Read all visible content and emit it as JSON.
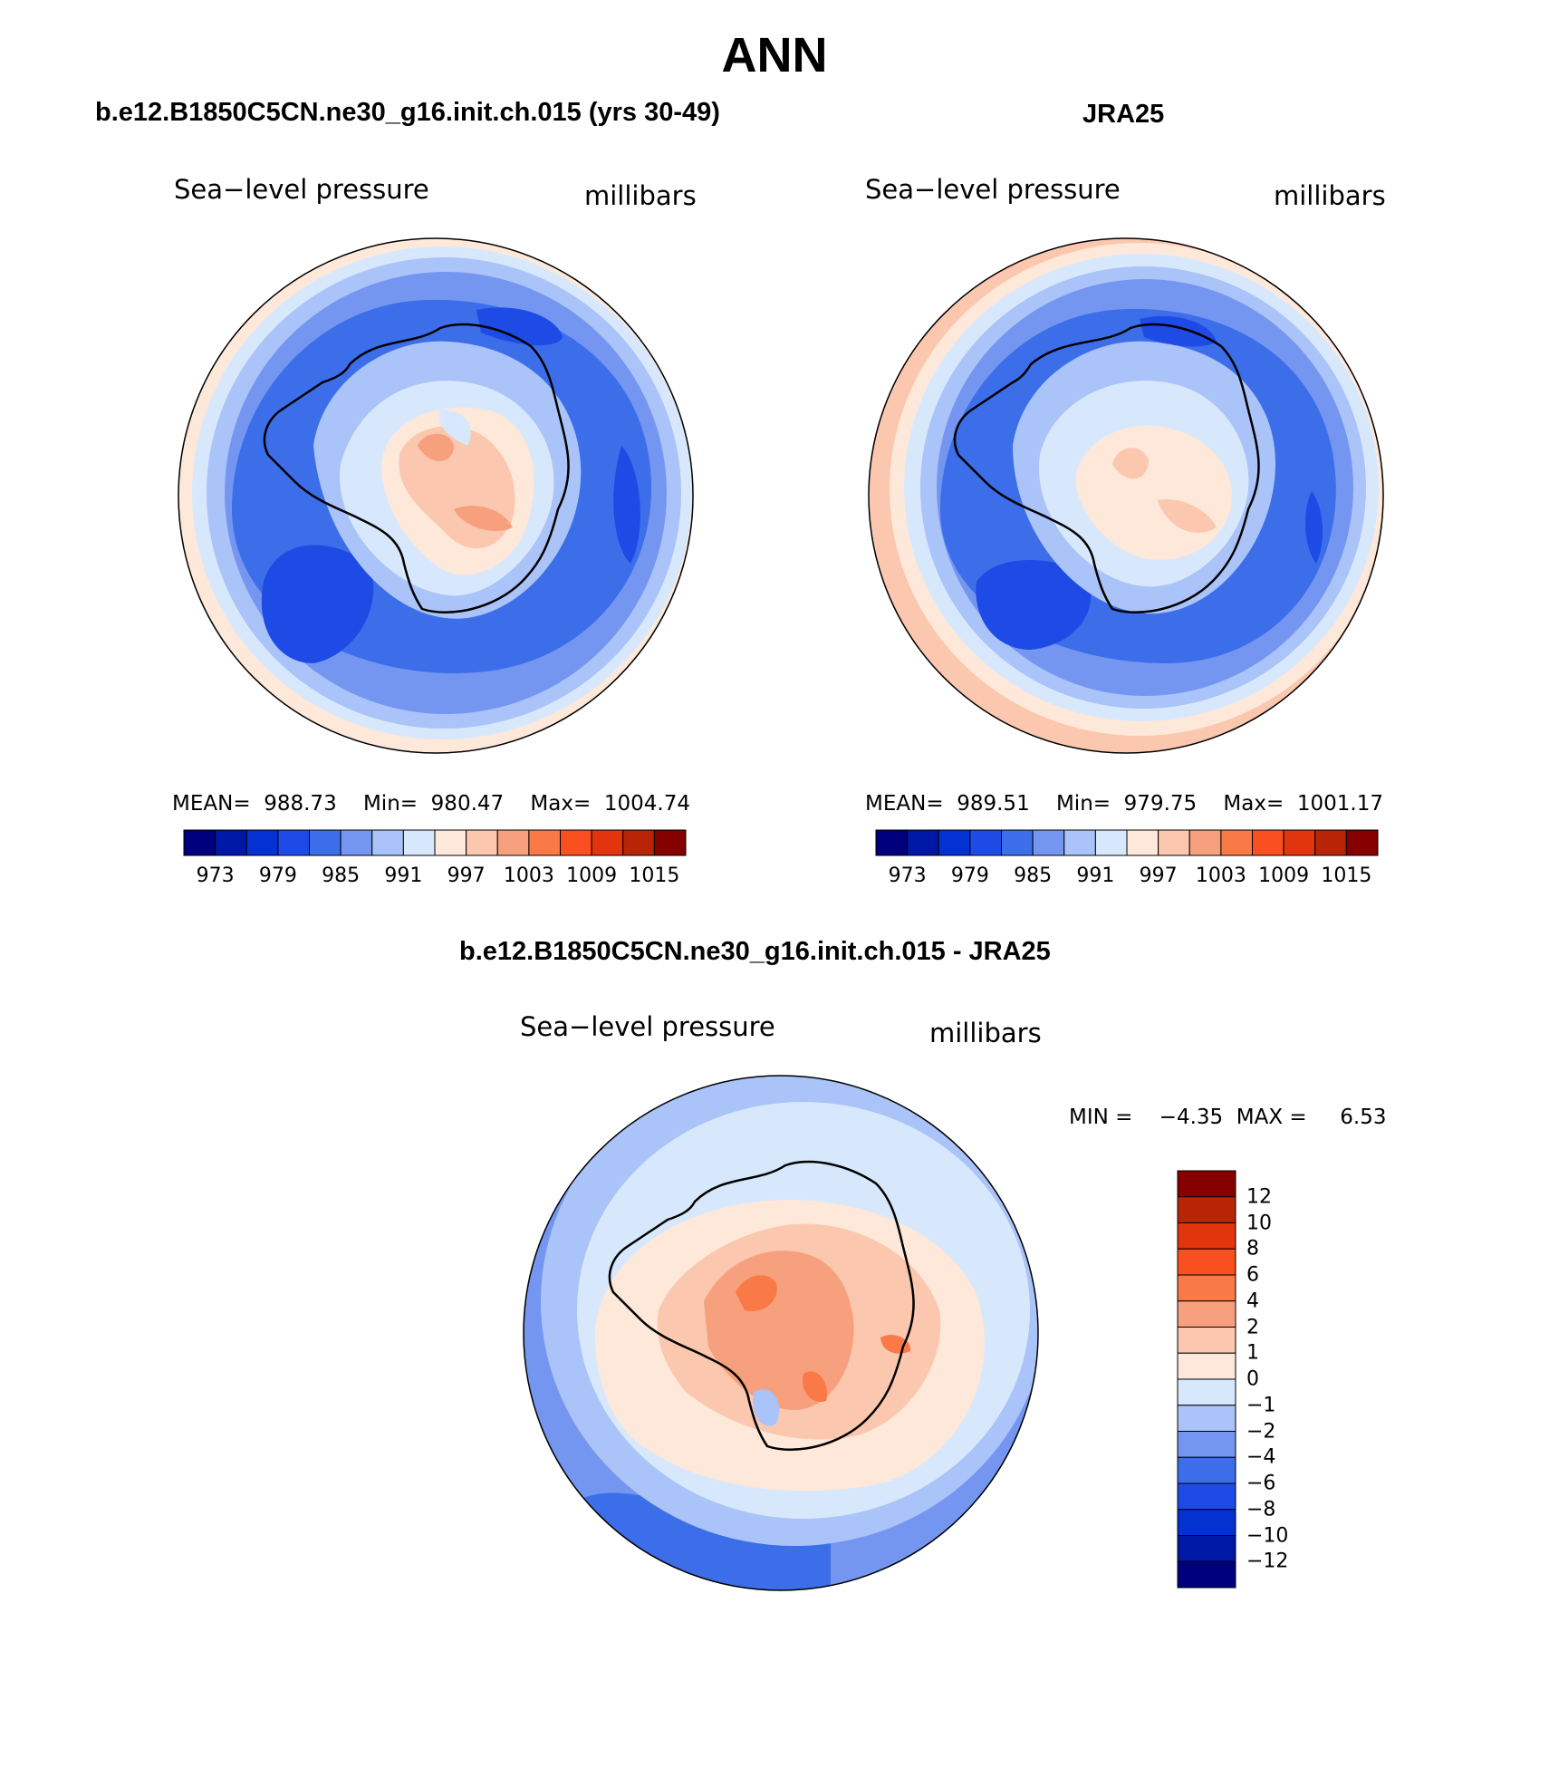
{
  "title": "ANN",
  "colors": {
    "abs": [
      "#00007f",
      "#0018a6",
      "#0431d2",
      "#1e4ae6",
      "#3c6eea",
      "#7596f0",
      "#aac3f8",
      "#d8e8fc",
      "#fde8d9",
      "#fbc7ae",
      "#f7a07e",
      "#f97947",
      "#fa4f1f",
      "#e2340d",
      "#b92407",
      "#870000"
    ],
    "diff": [
      "#00007f",
      "#0018a6",
      "#0431d2",
      "#1e4ae6",
      "#3c6eea",
      "#7596f0",
      "#aac3f8",
      "#d8e8fc",
      "#fde8d9",
      "#fbc7ae",
      "#f7a07e",
      "#f97947",
      "#fa4f1f",
      "#e2340d",
      "#b92407",
      "#870000"
    ]
  },
  "panels": {
    "model": {
      "title": "b.e12.B1850C5CN.ne30_g16.init.ch.015 (yrs 30-49)",
      "left_label": "Sea−level pressure",
      "right_label": "millibars",
      "mean_label": "MEAN=",
      "mean_value": "988.73",
      "min_label": "Min=",
      "min_value": "980.47",
      "max_label": "Max=",
      "max_value": "1004.74",
      "legend_ticks": [
        "973",
        "979",
        "985",
        "991",
        "997",
        "1003",
        "1009",
        "1015"
      ]
    },
    "obs": {
      "title": "JRA25",
      "left_label": "Sea−level pressure",
      "right_label": "millibars",
      "mean_label": "MEAN=",
      "mean_value": "989.51",
      "min_label": "Min=",
      "min_value": "979.75",
      "max_label": "Max=",
      "max_value": "1001.17",
      "legend_ticks": [
        "973",
        "979",
        "985",
        "991",
        "997",
        "1003",
        "1009",
        "1015"
      ]
    },
    "diff": {
      "title": "b.e12.B1850C5CN.ne30_g16.init.ch.015 - JRA25",
      "left_label": "Sea−level pressure",
      "right_label": "millibars",
      "min_label": "MIN =",
      "min_value": "−4.35",
      "max_label": "MAX =",
      "max_value": "6.53",
      "legend_ticks": [
        "12",
        "10",
        "8",
        "6",
        "4",
        "2",
        "1",
        "0",
        "−1",
        "−2",
        "−4",
        "−6",
        "−8",
        "−10",
        "−12"
      ]
    }
  }
}
